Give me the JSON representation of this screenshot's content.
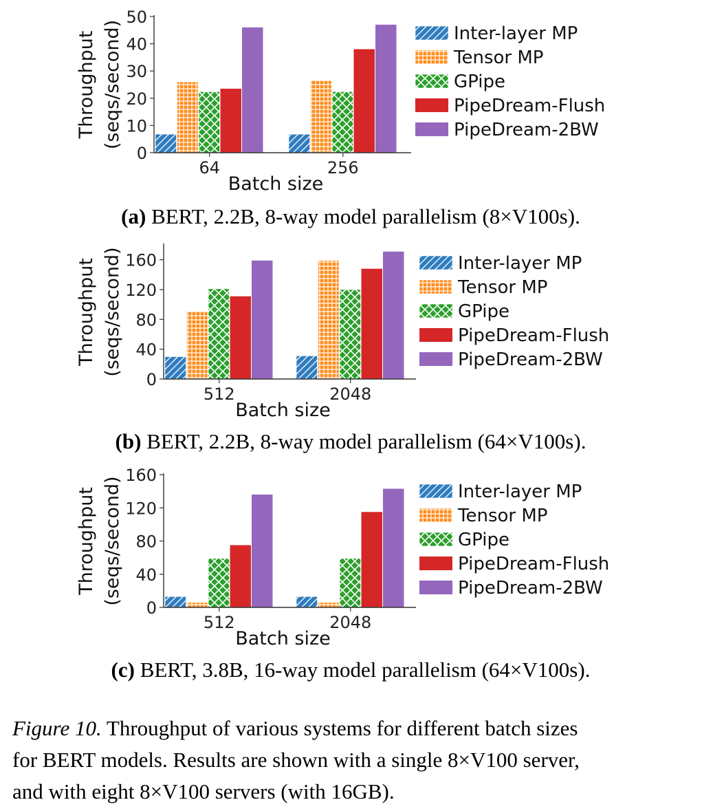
{
  "palette": {
    "inter_layer": "#2f7cbf",
    "tensor": "#ff8c1a",
    "gpipe": "#2ca02c",
    "flush": "#d62728",
    "twobw": "#9467bd"
  },
  "chart_data": [
    {
      "type": "bar",
      "panel": "a",
      "categories": [
        "64",
        "256"
      ],
      "series": [
        {
          "name": "Inter-layer MP",
          "values": [
            6.8,
            6.8
          ]
        },
        {
          "name": "Tensor MP",
          "values": [
            26,
            26.5
          ]
        },
        {
          "name": "GPipe",
          "values": [
            22.4,
            22.4
          ]
        },
        {
          "name": "PipeDream-Flush",
          "values": [
            23.5,
            38
          ]
        },
        {
          "name": "PipeDream-2BW",
          "values": [
            46,
            47
          ]
        }
      ],
      "xlabel": "Batch size",
      "ylabel": [
        "Throughput",
        "(seqs/second)"
      ],
      "ylim": [
        0,
        50
      ],
      "yticks": [
        "0",
        "10",
        "20",
        "30",
        "40",
        "50"
      ],
      "legend": "right",
      "caption_label": "(a)",
      "caption_text": " BERT, 2.2B, 8-way model parallelism (8×V100s)."
    },
    {
      "type": "bar",
      "panel": "b",
      "categories": [
        "512",
        "2048"
      ],
      "series": [
        {
          "name": "Inter-layer MP",
          "values": [
            30,
            31
          ]
        },
        {
          "name": "Tensor MP",
          "values": [
            91,
            159
          ]
        },
        {
          "name": "GPipe",
          "values": [
            121,
            120
          ]
        },
        {
          "name": "PipeDream-Flush",
          "values": [
            111,
            148
          ]
        },
        {
          "name": "PipeDream-2BW",
          "values": [
            159,
            171
          ]
        }
      ],
      "xlabel": "Batch size",
      "ylabel": [
        "Throughput",
        "(seqs/second)"
      ],
      "ylim": [
        0,
        180
      ],
      "yticks": [
        "0",
        "40",
        "80",
        "120",
        "160"
      ],
      "legend": "right",
      "caption_label": "(b)",
      "caption_text": " BERT, 2.2B, 8-way model parallelism (64×V100s)."
    },
    {
      "type": "bar",
      "panel": "c",
      "categories": [
        "512",
        "2048"
      ],
      "series": [
        {
          "name": "Inter-layer MP",
          "values": [
            13,
            13
          ]
        },
        {
          "name": "Tensor MP",
          "values": [
            6,
            6
          ]
        },
        {
          "name": "GPipe",
          "values": [
            59,
            59
          ]
        },
        {
          "name": "PipeDream-Flush",
          "values": [
            75,
            115
          ]
        },
        {
          "name": "PipeDream-2BW",
          "values": [
            136,
            143
          ]
        }
      ],
      "xlabel": "Batch size",
      "ylabel": [
        "Throughput",
        "(seqs/second)"
      ],
      "ylim": [
        0,
        160
      ],
      "yticks": [
        "0",
        "40",
        "80",
        "120",
        "160"
      ],
      "legend": "right",
      "caption_label": "(c)",
      "caption_text": " BERT, 3.8B, 16-way model parallelism (64×V100s)."
    }
  ],
  "figure_caption": {
    "label": "Figure 10.",
    "lines": [
      " Throughput of various systems for different batch sizes",
      "for BERT models. Results are shown with a single 8×V100 server,",
      "and with eight 8×V100 servers (with 16GB)."
    ]
  }
}
